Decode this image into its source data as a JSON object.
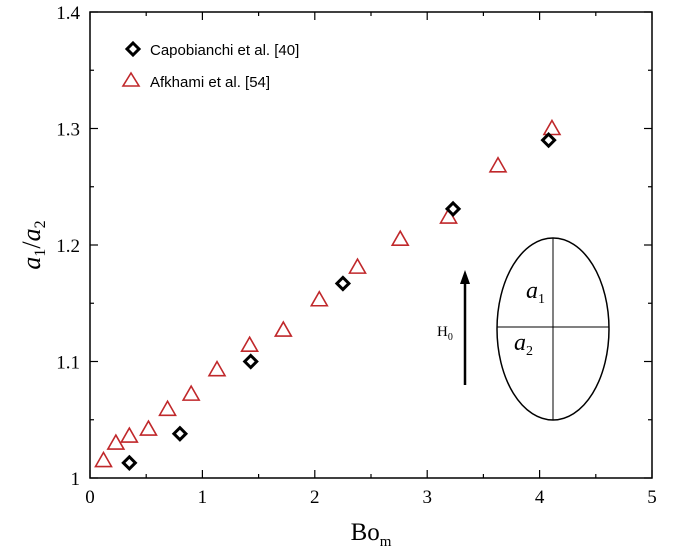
{
  "chart_data": {
    "type": "scatter",
    "x_ticks": [
      "0",
      "1",
      "2",
      "3",
      "4",
      "5"
    ],
    "y_ticks": [
      "1",
      "1.1",
      "1.2",
      "1.3",
      "1.4"
    ],
    "xlim": [
      0,
      5
    ],
    "ylim": [
      1,
      1.4
    ],
    "legend_position": "top-left",
    "series": [
      {
        "name": "Capobianchi et al. [40]",
        "marker": "diamond-open",
        "color": "#000000",
        "points": [
          {
            "x": 0.35,
            "y": 1.013
          },
          {
            "x": 0.8,
            "y": 1.038
          },
          {
            "x": 1.43,
            "y": 1.1
          },
          {
            "x": 2.25,
            "y": 1.167
          },
          {
            "x": 3.23,
            "y": 1.231
          },
          {
            "x": 4.08,
            "y": 1.29
          }
        ]
      },
      {
        "name": "Afkhami et al. [54]",
        "marker": "triangle-open",
        "color": "#c0282b",
        "points": [
          {
            "x": 0.12,
            "y": 1.015
          },
          {
            "x": 0.23,
            "y": 1.03
          },
          {
            "x": 0.35,
            "y": 1.036
          },
          {
            "x": 0.52,
            "y": 1.042
          },
          {
            "x": 0.69,
            "y": 1.059
          },
          {
            "x": 0.9,
            "y": 1.072
          },
          {
            "x": 1.13,
            "y": 1.093
          },
          {
            "x": 1.42,
            "y": 1.114
          },
          {
            "x": 1.72,
            "y": 1.127
          },
          {
            "x": 2.04,
            "y": 1.153
          },
          {
            "x": 2.38,
            "y": 1.181
          },
          {
            "x": 2.76,
            "y": 1.205
          },
          {
            "x": 3.19,
            "y": 1.224
          },
          {
            "x": 3.63,
            "y": 1.268
          },
          {
            "x": 4.11,
            "y": 1.3
          }
        ]
      }
    ],
    "xlabel": {
      "main": "Bo",
      "sub": "m"
    },
    "ylabel": {
      "a1": "a",
      "sub1": "1",
      "slash": "/",
      "a2": "a",
      "sub2": "2"
    },
    "inset": {
      "arrow_label_main": "H",
      "arrow_label_sub": "0",
      "upper_label": "a",
      "upper_sub": "1",
      "lower_label": "a",
      "lower_sub": "2"
    }
  }
}
